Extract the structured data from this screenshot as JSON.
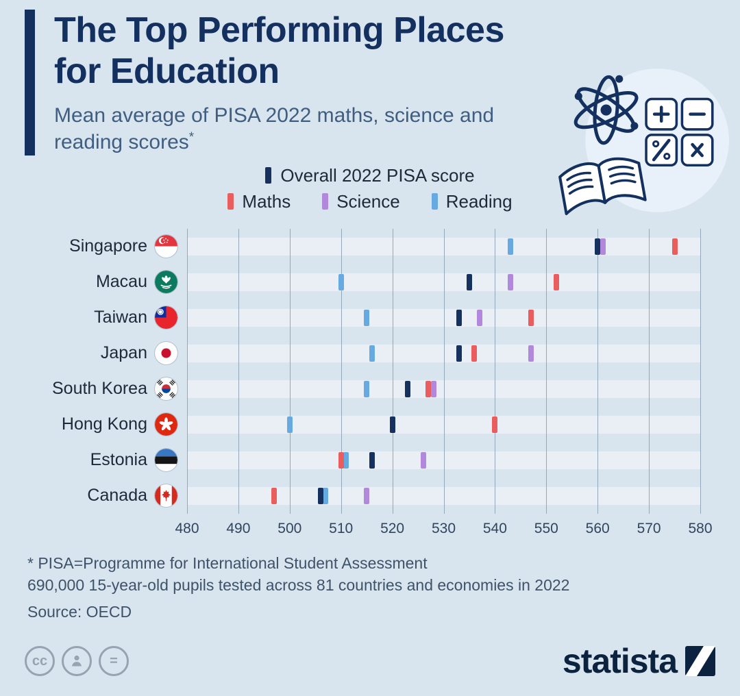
{
  "header": {
    "title": "The Top Performing Places for Education",
    "subtitle": "Mean average of PISA 2022 maths, science and reading scores",
    "subtitle_note": "*"
  },
  "legend": {
    "overall_label": "Overall 2022 PISA score",
    "maths_label": "Maths",
    "science_label": "Science",
    "reading_label": "Reading"
  },
  "colors": {
    "overall": "#17315e",
    "maths": "#ea5d5f",
    "science": "#b288dd",
    "reading": "#66aae1",
    "background": "#d8e4ee",
    "band": "#e9eff5",
    "navy": "#14305f"
  },
  "chart_data": {
    "type": "scatter",
    "orientation": "horizontal",
    "title": "The Top Performing Places for Education",
    "subtitle": "Mean average of PISA 2022 maths, science and reading scores*",
    "xlim": [
      480,
      580
    ],
    "xticks": [
      480,
      490,
      500,
      510,
      520,
      530,
      540,
      550,
      560,
      570,
      580
    ],
    "grid": true,
    "legend_position": "top",
    "series_names": {
      "overall": "Overall 2022 PISA score",
      "maths": "Maths",
      "science": "Science",
      "reading": "Reading"
    },
    "rows": [
      {
        "country": "Singapore",
        "flag": "sg",
        "overall": 560,
        "maths": 575,
        "science": 561,
        "reading": 543
      },
      {
        "country": "Macau",
        "flag": "mo",
        "overall": 535,
        "maths": 552,
        "science": 543,
        "reading": 510
      },
      {
        "country": "Taiwan",
        "flag": "tw",
        "overall": 533,
        "maths": 547,
        "science": 537,
        "reading": 515
      },
      {
        "country": "Japan",
        "flag": "jp",
        "overall": 533,
        "maths": 536,
        "science": 547,
        "reading": 516
      },
      {
        "country": "South Korea",
        "flag": "kr",
        "overall": 523,
        "maths": 527,
        "science": 528,
        "reading": 515
      },
      {
        "country": "Hong Kong",
        "flag": "hk",
        "overall": 520,
        "maths": 540,
        "science": 520,
        "reading": 500
      },
      {
        "country": "Estonia",
        "flag": "ee",
        "overall": 516,
        "maths": 510,
        "science": 526,
        "reading": 511
      },
      {
        "country": "Canada",
        "flag": "ca",
        "overall": 506,
        "maths": 497,
        "science": 515,
        "reading": 507
      }
    ]
  },
  "footnotes": {
    "line1": "* PISA=Programme for International Student Assessment",
    "line2": "690,000 15-year-old pupils tested across 81 countries and economies in 2022",
    "source": "Source: OECD"
  },
  "footer": {
    "brand": "statista",
    "cc_icons": [
      "cc",
      "attribution-person",
      "equals"
    ]
  }
}
